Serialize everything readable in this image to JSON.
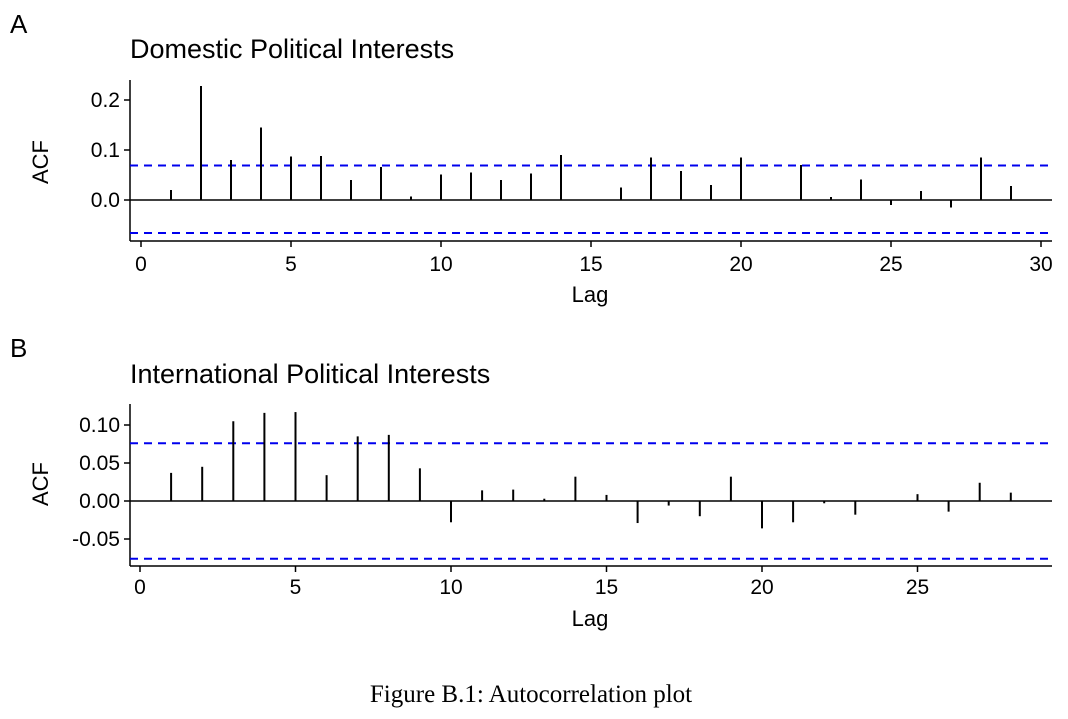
{
  "figure": {
    "caption": "Figure B.1: Autocorrelation plot"
  },
  "colors": {
    "bars": "#000000",
    "confidence_lines": "#0000ee",
    "axes": "#000000"
  },
  "chart_data": [
    {
      "type": "bar",
      "panel_label": "A",
      "title": "Domestic Political Interests",
      "xlabel": "Lag",
      "ylabel": "ACF",
      "xlim": [
        0,
        30
      ],
      "ylim": [
        -0.07,
        0.24
      ],
      "x_ticks": [
        0,
        5,
        10,
        15,
        20,
        25,
        30
      ],
      "x_tick_labels": [
        "0",
        "5",
        "10",
        "15",
        "20",
        "25",
        "30"
      ],
      "y_ticks": [
        0.0,
        0.1,
        0.2
      ],
      "y_tick_labels": [
        "0.0",
        "0.1",
        "0.2"
      ],
      "confidence_bounds": [
        0.069,
        -0.066
      ],
      "grid": false,
      "lags": [
        1,
        2,
        3,
        4,
        5,
        6,
        7,
        8,
        9,
        10,
        11,
        12,
        13,
        14,
        15,
        16,
        17,
        18,
        19,
        20,
        21,
        22,
        23,
        24,
        25,
        26,
        27,
        28,
        29
      ],
      "acf": [
        0.02,
        0.228,
        0.08,
        0.145,
        0.087,
        0.088,
        0.04,
        0.066,
        0.007,
        0.051,
        0.055,
        0.04,
        0.053,
        0.09,
        0.0,
        0.025,
        0.085,
        0.058,
        0.03,
        0.085,
        0.0,
        0.07,
        0.006,
        0.041,
        -0.01,
        0.018,
        -0.015,
        0.085,
        0.028
      ]
    },
    {
      "type": "bar",
      "panel_label": "B",
      "title": "International Political Interests",
      "xlabel": "Lag",
      "ylabel": "ACF",
      "xlim": [
        0,
        29
      ],
      "ylim": [
        -0.085,
        0.125
      ],
      "x_ticks": [
        0,
        5,
        10,
        15,
        20,
        25
      ],
      "x_tick_labels": [
        "0",
        "5",
        "10",
        "15",
        "20",
        "25"
      ],
      "y_ticks": [
        0.1,
        0.05,
        0.0,
        -0.05
      ],
      "y_tick_labels": [
        "0.10",
        "0.05",
        "0.00",
        "-0.05"
      ],
      "confidence_bounds": [
        0.076,
        -0.076
      ],
      "grid": false,
      "lags": [
        1,
        2,
        3,
        4,
        5,
        6,
        7,
        8,
        9,
        10,
        11,
        12,
        13,
        14,
        15,
        16,
        17,
        18,
        19,
        20,
        21,
        22,
        23,
        24,
        25,
        26,
        27,
        28
      ],
      "acf": [
        0.037,
        0.045,
        0.105,
        0.116,
        0.117,
        0.034,
        0.085,
        0.087,
        0.043,
        -0.028,
        0.014,
        0.015,
        0.003,
        0.032,
        0.008,
        -0.029,
        -0.006,
        -0.02,
        0.032,
        -0.036,
        -0.028,
        -0.003,
        -0.018,
        0.0,
        0.009,
        -0.014,
        0.024,
        0.011
      ]
    }
  ]
}
